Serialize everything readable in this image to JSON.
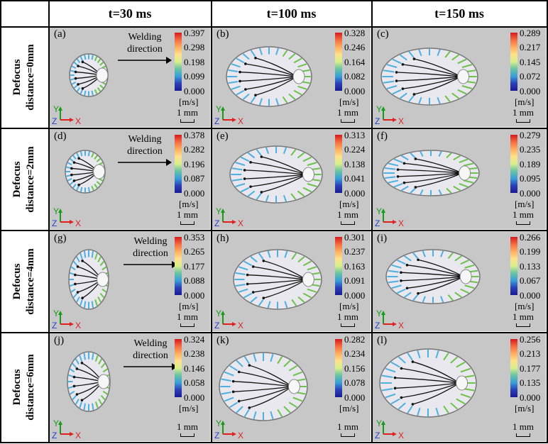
{
  "columns": [
    "t=30 ms",
    "t=100 ms",
    "t=150 ms"
  ],
  "rows": [
    {
      "label_line1": "Defocus",
      "label_line2": "distance=0mm"
    },
    {
      "label_line1": "Defocus",
      "label_line2": "distance=2mm"
    },
    {
      "label_line1": "Defocus",
      "label_line2": "distance=4mm"
    },
    {
      "label_line1": "Defocus",
      "label_line2": "distance=6mm"
    }
  ],
  "welding_label": {
    "line1": "Welding",
    "line2": "direction"
  },
  "unit": "[m/s]",
  "scale_bar": "1 mm",
  "axes": {
    "y": "Y",
    "z": "Z",
    "x": "X"
  },
  "colors": {
    "y_axis": "#1a9a1a",
    "z_axis": "#2a3fd6",
    "x_axis": "#e02020",
    "pool": "#e8e8ee",
    "background": "#c7c7c7"
  },
  "panels": [
    {
      "id": "(a)",
      "ticks": [
        "0.397",
        "0.298",
        "0.198",
        "0.099",
        "0.000"
      ]
    },
    {
      "id": "(b)",
      "ticks": [
        "0.328",
        "0.246",
        "0.164",
        "0.082",
        "0.000"
      ]
    },
    {
      "id": "(c)",
      "ticks": [
        "0.289",
        "0.217",
        "0.145",
        "0.072",
        "0.000"
      ]
    },
    {
      "id": "(d)",
      "ticks": [
        "0.378",
        "0.282",
        "0.196",
        "0.087",
        "0.000"
      ]
    },
    {
      "id": "(e)",
      "ticks": [
        "0.313",
        "0.224",
        "0.138",
        "0.041",
        "0.000"
      ]
    },
    {
      "id": "(f)",
      "ticks": [
        "0.279",
        "0.235",
        "0.189",
        "0.095",
        "0.000"
      ]
    },
    {
      "id": "(g)",
      "ticks": [
        "0.353",
        "0.265",
        "0.177",
        "0.088",
        "0.000"
      ]
    },
    {
      "id": "(h)",
      "ticks": [
        "0.301",
        "0.237",
        "0.163",
        "0.091",
        "0.000"
      ]
    },
    {
      "id": "(i)",
      "ticks": [
        "0.266",
        "0.199",
        "0.133",
        "0.067",
        "0.000"
      ]
    },
    {
      "id": "(j)",
      "ticks": [
        "0.324",
        "0.238",
        "0.146",
        "0.058",
        "0.000"
      ]
    },
    {
      "id": "(k)",
      "ticks": [
        "0.282",
        "0.234",
        "0.156",
        "0.078",
        "0.000"
      ]
    },
    {
      "id": "(l)",
      "ticks": [
        "0.256",
        "0.213",
        "0.177",
        "0.135",
        "0.000"
      ]
    }
  ]
}
